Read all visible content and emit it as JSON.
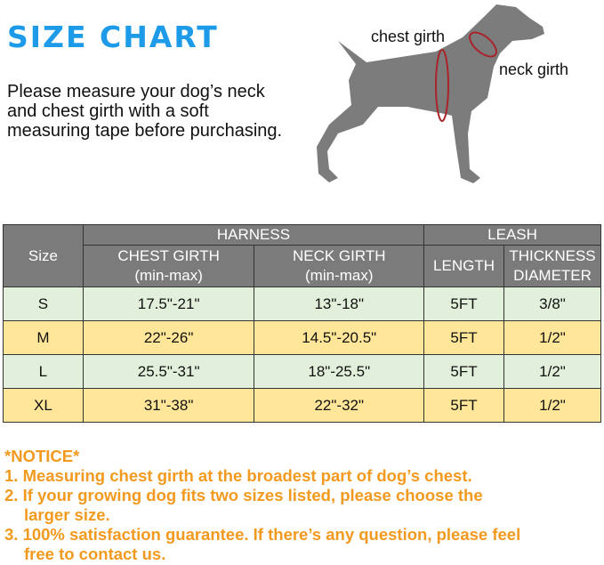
{
  "title": "SIZE CHART",
  "intro": "Please measure your dog’s neck and chest girth with a soft measuring tape before purchasing.",
  "diagram": {
    "chest_label": "chest girth",
    "neck_label": "neck girth",
    "measure_color": "#a8242a",
    "dog_color": "#7c7c7c"
  },
  "table": {
    "size_header": "Size",
    "harness_header": "HARNESS",
    "leash_header": "LEASH",
    "chest_header": "CHEST GIRTH",
    "chest_sub": "(min-max)",
    "neck_header": "NECK GIRTH",
    "neck_sub": "(min-max)",
    "length_header": "LENGTH",
    "thickness_header": "THICKNESS",
    "thickness_sub": "DIAMETER",
    "rows": [
      {
        "size": "S",
        "chest": "17.5\"-21\"",
        "neck": "13\"-18\"",
        "length": "5FT",
        "thickness": "3/8\""
      },
      {
        "size": "M",
        "chest": "22\"-26\"",
        "neck": "14.5\"-20.5\"",
        "length": "5FT",
        "thickness": "1/2\""
      },
      {
        "size": "L",
        "chest": "25.5\"-31\"",
        "neck": "18\"-25.5\"",
        "length": "5FT",
        "thickness": "1/2\""
      },
      {
        "size": "XL",
        "chest": "31\"-38\"",
        "neck": "22\"-32\"",
        "length": "5FT",
        "thickness": "1/2\""
      }
    ],
    "colors": {
      "header": "#7b7b7b",
      "row_green": "#e2efda",
      "row_yellow": "#ffe699"
    }
  },
  "notice": {
    "heading": "*NOTICE*",
    "items": [
      "1.  Measuring chest girth at the broadest part of dog’s chest.",
      "2.  If your growing dog fits two sizes listed, please choose the",
      "larger size.",
      "3. 100% satisfaction guarantee. If there’s any question, please feel",
      "free to contact us."
    ],
    "color": "#f29a1f"
  }
}
